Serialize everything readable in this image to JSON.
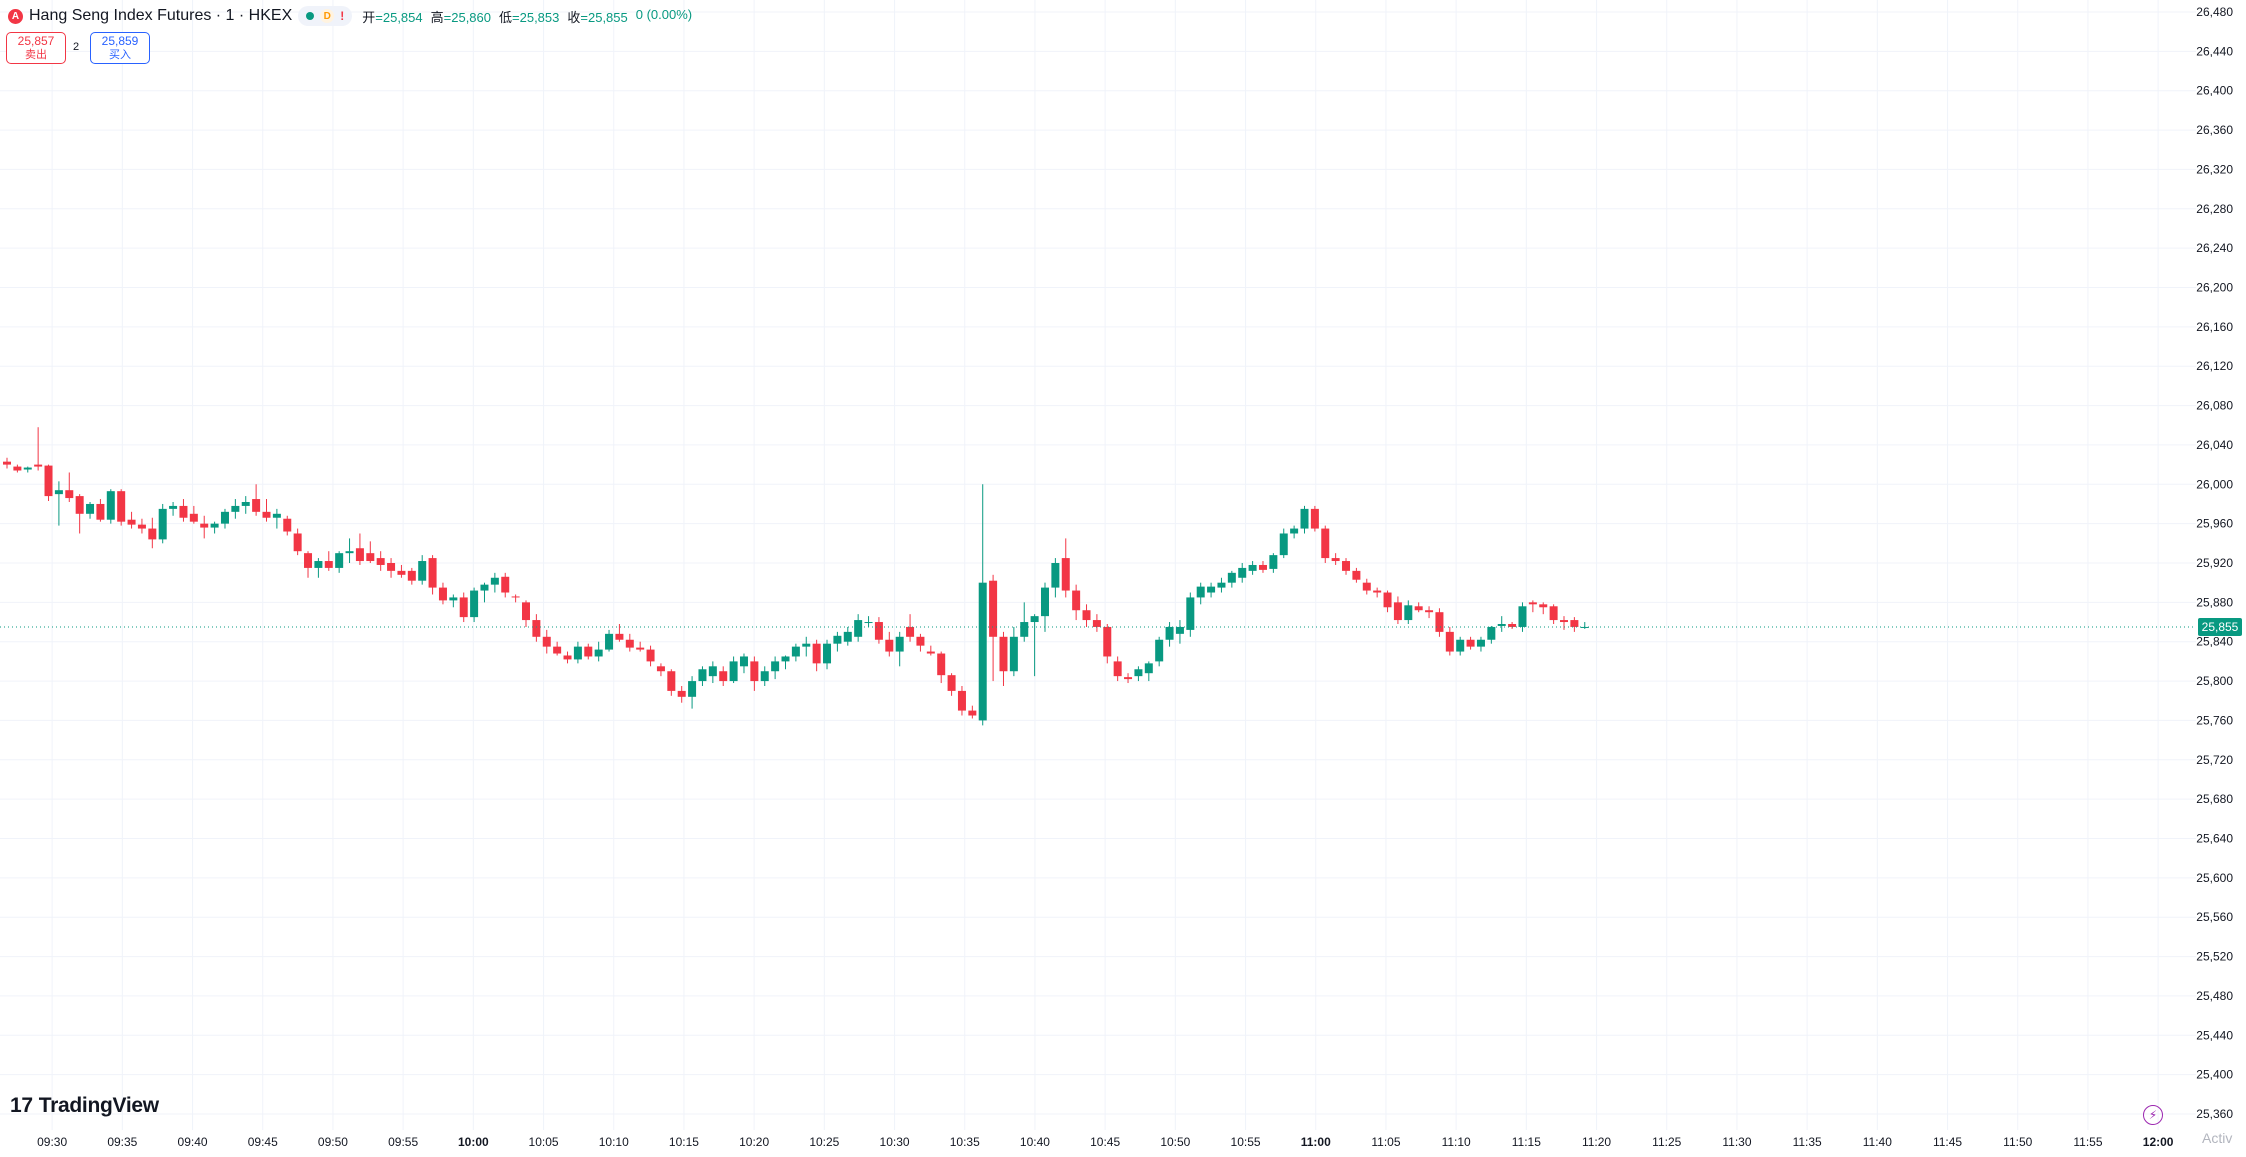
{
  "symbol": {
    "badge": "A",
    "title": "Hang Seng Index Futures · 1 · HKEX"
  },
  "status": {
    "d_label": "D",
    "warn_label": "!"
  },
  "ohlc": {
    "open_label": "开",
    "open": "=25,854",
    "high_label": "高",
    "high": "=25,860",
    "low_label": "低",
    "low": "=25,853",
    "close_label": "收",
    "close": "=25,855",
    "change": "0 (0.00%)"
  },
  "trade": {
    "sell_price": "25,857",
    "sell_label": "卖出",
    "spread": "2",
    "buy_price": "25,859",
    "buy_label": "买入"
  },
  "branding": {
    "logo_mark": "17",
    "logo_text": "TradingView",
    "watermark": "Activ"
  },
  "colors": {
    "up": "#089981",
    "down": "#f23645",
    "grid": "#f0f3fa",
    "text": "#131722"
  },
  "chart_data": {
    "type": "candlestick",
    "symbol": "Hang Seng Index Futures",
    "interval": "1",
    "exchange": "HKEX",
    "ylim": [
      25340,
      26500
    ],
    "y_ticks": [
      25360,
      25400,
      25440,
      25480,
      25520,
      25560,
      25600,
      25640,
      25680,
      25720,
      25760,
      25800,
      25840,
      25880,
      25920,
      25960,
      26000,
      26040,
      26080,
      26120,
      26160,
      26200,
      26240,
      26280,
      26320,
      26360,
      26400,
      26440,
      26480
    ],
    "y_tick_labels": [
      "25,360",
      "25,400",
      "25,440",
      "25,480",
      "25,520",
      "25,560",
      "25,600",
      "25,640",
      "25,680",
      "25,720",
      "25,760",
      "25,800",
      "25,840",
      "25,880",
      "25,920",
      "25,960",
      "26,000",
      "26,040",
      "26,080",
      "26,120",
      "26,160",
      "26,200",
      "26,240",
      "26,280",
      "26,320",
      "26,360",
      "26,400",
      "26,440",
      "26,480"
    ],
    "x_ticks": [
      "09:30",
      "09:35",
      "09:40",
      "09:45",
      "09:50",
      "09:55",
      "10:00",
      "10:05",
      "10:10",
      "10:15",
      "10:20",
      "10:25",
      "10:30",
      "10:35",
      "10:40",
      "10:45",
      "10:50",
      "10:55",
      "11:00",
      "11:05",
      "11:10",
      "11:15",
      "11:20",
      "11:25",
      "11:30",
      "11:35",
      "11:40",
      "11:45",
      "11:50",
      "11:55",
      "12:00"
    ],
    "bold_x_ticks": [
      "10:00",
      "11:00",
      "12:00"
    ],
    "last_price": 25855,
    "last_price_label": "25,855",
    "candles": [
      {
        "o": 26023,
        "h": 26027,
        "l": 26016,
        "c": 26020
      },
      {
        "o": 26018,
        "h": 26020,
        "l": 26012,
        "c": 26014
      },
      {
        "o": 26015,
        "h": 26018,
        "l": 26012,
        "c": 26017
      },
      {
        "o": 26020,
        "h": 26058,
        "l": 26014,
        "c": 26018
      },
      {
        "o": 26019,
        "h": 26020,
        "l": 25983,
        "c": 25988
      },
      {
        "o": 25990,
        "h": 26003,
        "l": 25958,
        "c": 25994
      },
      {
        "o": 25994,
        "h": 26012,
        "l": 25982,
        "c": 25986
      },
      {
        "o": 25988,
        "h": 25990,
        "l": 25950,
        "c": 25970
      },
      {
        "o": 25970,
        "h": 25982,
        "l": 25965,
        "c": 25980
      },
      {
        "o": 25980,
        "h": 25985,
        "l": 25962,
        "c": 25964
      },
      {
        "o": 25964,
        "h": 25995,
        "l": 25960,
        "c": 25993
      },
      {
        "o": 25993,
        "h": 25995,
        "l": 25958,
        "c": 25962
      },
      {
        "o": 25964,
        "h": 25972,
        "l": 25955,
        "c": 25959
      },
      {
        "o": 25959,
        "h": 25965,
        "l": 25950,
        "c": 25955
      },
      {
        "o": 25955,
        "h": 25966,
        "l": 25935,
        "c": 25944
      },
      {
        "o": 25944,
        "h": 25980,
        "l": 25940,
        "c": 25975
      },
      {
        "o": 25975,
        "h": 25982,
        "l": 25968,
        "c": 25978
      },
      {
        "o": 25978,
        "h": 25985,
        "l": 25962,
        "c": 25966
      },
      {
        "o": 25970,
        "h": 25978,
        "l": 25960,
        "c": 25962
      },
      {
        "o": 25960,
        "h": 25968,
        "l": 25945,
        "c": 25956
      },
      {
        "o": 25956,
        "h": 25962,
        "l": 25950,
        "c": 25960
      },
      {
        "o": 25960,
        "h": 25975,
        "l": 25955,
        "c": 25972
      },
      {
        "o": 25972,
        "h": 25985,
        "l": 25965,
        "c": 25978
      },
      {
        "o": 25978,
        "h": 25988,
        "l": 25970,
        "c": 25982
      },
      {
        "o": 25985,
        "h": 26000,
        "l": 25968,
        "c": 25972
      },
      {
        "o": 25972,
        "h": 25985,
        "l": 25962,
        "c": 25966
      },
      {
        "o": 25966,
        "h": 25975,
        "l": 25955,
        "c": 25970
      },
      {
        "o": 25965,
        "h": 25968,
        "l": 25948,
        "c": 25952
      },
      {
        "o": 25950,
        "h": 25955,
        "l": 25928,
        "c": 25932
      },
      {
        "o": 25930,
        "h": 25932,
        "l": 25905,
        "c": 25915
      },
      {
        "o": 25915,
        "h": 25925,
        "l": 25905,
        "c": 25922
      },
      {
        "o": 25922,
        "h": 25932,
        "l": 25912,
        "c": 25915
      },
      {
        "o": 25915,
        "h": 25932,
        "l": 25910,
        "c": 25930
      },
      {
        "o": 25930,
        "h": 25945,
        "l": 25920,
        "c": 25932
      },
      {
        "o": 25935,
        "h": 25950,
        "l": 25918,
        "c": 25922
      },
      {
        "o": 25930,
        "h": 25942,
        "l": 25920,
        "c": 25922
      },
      {
        "o": 25925,
        "h": 25932,
        "l": 25912,
        "c": 25918
      },
      {
        "o": 25920,
        "h": 25925,
        "l": 25905,
        "c": 25912
      },
      {
        "o": 25912,
        "h": 25918,
        "l": 25905,
        "c": 25908
      },
      {
        "o": 25912,
        "h": 25915,
        "l": 25898,
        "c": 25902
      },
      {
        "o": 25902,
        "h": 25928,
        "l": 25898,
        "c": 25922
      },
      {
        "o": 25925,
        "h": 25928,
        "l": 25888,
        "c": 25895
      },
      {
        "o": 25895,
        "h": 25900,
        "l": 25878,
        "c": 25882
      },
      {
        "o": 25882,
        "h": 25888,
        "l": 25875,
        "c": 25885
      },
      {
        "o": 25885,
        "h": 25890,
        "l": 25860,
        "c": 25865
      },
      {
        "o": 25865,
        "h": 25895,
        "l": 25860,
        "c": 25892
      },
      {
        "o": 25892,
        "h": 25900,
        "l": 25880,
        "c": 25898
      },
      {
        "o": 25898,
        "h": 25910,
        "l": 25890,
        "c": 25905
      },
      {
        "o": 25906,
        "h": 25910,
        "l": 25885,
        "c": 25890
      },
      {
        "o": 25886,
        "h": 25888,
        "l": 25880,
        "c": 25885
      },
      {
        "o": 25880,
        "h": 25882,
        "l": 25855,
        "c": 25862
      },
      {
        "o": 25862,
        "h": 25868,
        "l": 25840,
        "c": 25845
      },
      {
        "o": 25845,
        "h": 25852,
        "l": 25828,
        "c": 25835
      },
      {
        "o": 25835,
        "h": 25840,
        "l": 25826,
        "c": 25828
      },
      {
        "o": 25826,
        "h": 25830,
        "l": 25818,
        "c": 25822
      },
      {
        "o": 25822,
        "h": 25840,
        "l": 25818,
        "c": 25835
      },
      {
        "o": 25835,
        "h": 25838,
        "l": 25822,
        "c": 25825
      },
      {
        "o": 25825,
        "h": 25840,
        "l": 25820,
        "c": 25832
      },
      {
        "o": 25832,
        "h": 25852,
        "l": 25830,
        "c": 25848
      },
      {
        "o": 25848,
        "h": 25858,
        "l": 25840,
        "c": 25842
      },
      {
        "o": 25842,
        "h": 25848,
        "l": 25830,
        "c": 25834
      },
      {
        "o": 25834,
        "h": 25840,
        "l": 25830,
        "c": 25832
      },
      {
        "o": 25832,
        "h": 25836,
        "l": 25815,
        "c": 25820
      },
      {
        "o": 25815,
        "h": 25818,
        "l": 25805,
        "c": 25810
      },
      {
        "o": 25810,
        "h": 25812,
        "l": 25785,
        "c": 25790
      },
      {
        "o": 25790,
        "h": 25795,
        "l": 25778,
        "c": 25784
      },
      {
        "o": 25784,
        "h": 25805,
        "l": 25772,
        "c": 25800
      },
      {
        "o": 25800,
        "h": 25815,
        "l": 25795,
        "c": 25812
      },
      {
        "o": 25805,
        "h": 25820,
        "l": 25798,
        "c": 25815
      },
      {
        "o": 25810,
        "h": 25815,
        "l": 25795,
        "c": 25800
      },
      {
        "o": 25800,
        "h": 25825,
        "l": 25798,
        "c": 25820
      },
      {
        "o": 25815,
        "h": 25828,
        "l": 25808,
        "c": 25825
      },
      {
        "o": 25820,
        "h": 25825,
        "l": 25790,
        "c": 25800
      },
      {
        "o": 25800,
        "h": 25815,
        "l": 25795,
        "c": 25810
      },
      {
        "o": 25810,
        "h": 25825,
        "l": 25802,
        "c": 25820
      },
      {
        "o": 25820,
        "h": 25826,
        "l": 25812,
        "c": 25825
      },
      {
        "o": 25825,
        "h": 25838,
        "l": 25820,
        "c": 25835
      },
      {
        "o": 25835,
        "h": 25845,
        "l": 25825,
        "c": 25838
      },
      {
        "o": 25838,
        "h": 25842,
        "l": 25810,
        "c": 25818
      },
      {
        "o": 25818,
        "h": 25842,
        "l": 25812,
        "c": 25838
      },
      {
        "o": 25838,
        "h": 25850,
        "l": 25830,
        "c": 25846
      },
      {
        "o": 25840,
        "h": 25855,
        "l": 25836,
        "c": 25850
      },
      {
        "o": 25845,
        "h": 25868,
        "l": 25840,
        "c": 25862
      },
      {
        "o": 25860,
        "h": 25866,
        "l": 25855,
        "c": 25860
      },
      {
        "o": 25860,
        "h": 25865,
        "l": 25838,
        "c": 25842
      },
      {
        "o": 25842,
        "h": 25850,
        "l": 25825,
        "c": 25830
      },
      {
        "o": 25830,
        "h": 25850,
        "l": 25815,
        "c": 25845
      },
      {
        "o": 25855,
        "h": 25868,
        "l": 25840,
        "c": 25845
      },
      {
        "o": 25845,
        "h": 25848,
        "l": 25830,
        "c": 25836
      },
      {
        "o": 25830,
        "h": 25836,
        "l": 25826,
        "c": 25828
      },
      {
        "o": 25828,
        "h": 25830,
        "l": 25798,
        "c": 25806
      },
      {
        "o": 25806,
        "h": 25808,
        "l": 25785,
        "c": 25790
      },
      {
        "o": 25790,
        "h": 25795,
        "l": 25765,
        "c": 25770
      },
      {
        "o": 25770,
        "h": 25775,
        "l": 25762,
        "c": 25765
      },
      {
        "o": 25760,
        "h": 26000,
        "l": 25755,
        "c": 25900
      },
      {
        "o": 25902,
        "h": 25908,
        "l": 25800,
        "c": 25845
      },
      {
        "o": 25845,
        "h": 25850,
        "l": 25795,
        "c": 25810
      },
      {
        "o": 25810,
        "h": 25855,
        "l": 25805,
        "c": 25845
      },
      {
        "o": 25845,
        "h": 25880,
        "l": 25840,
        "c": 25860
      },
      {
        "o": 25860,
        "h": 25868,
        "l": 25805,
        "c": 25866
      },
      {
        "o": 25866,
        "h": 25900,
        "l": 25850,
        "c": 25895
      },
      {
        "o": 25895,
        "h": 25925,
        "l": 25885,
        "c": 25920
      },
      {
        "o": 25925,
        "h": 25945,
        "l": 25885,
        "c": 25892
      },
      {
        "o": 25892,
        "h": 25898,
        "l": 25862,
        "c": 25872
      },
      {
        "o": 25872,
        "h": 25878,
        "l": 25855,
        "c": 25862
      },
      {
        "o": 25862,
        "h": 25868,
        "l": 25850,
        "c": 25855
      },
      {
        "o": 25855,
        "h": 25858,
        "l": 25818,
        "c": 25825
      },
      {
        "o": 25820,
        "h": 25825,
        "l": 25800,
        "c": 25805
      },
      {
        "o": 25804,
        "h": 25808,
        "l": 25798,
        "c": 25802
      },
      {
        "o": 25805,
        "h": 25815,
        "l": 25800,
        "c": 25812
      },
      {
        "o": 25808,
        "h": 25820,
        "l": 25800,
        "c": 25818
      },
      {
        "o": 25820,
        "h": 25845,
        "l": 25815,
        "c": 25842
      },
      {
        "o": 25842,
        "h": 25860,
        "l": 25835,
        "c": 25855
      },
      {
        "o": 25848,
        "h": 25862,
        "l": 25838,
        "c": 25855
      },
      {
        "o": 25852,
        "h": 25890,
        "l": 25845,
        "c": 25885
      },
      {
        "o": 25885,
        "h": 25900,
        "l": 25878,
        "c": 25896
      },
      {
        "o": 25890,
        "h": 25900,
        "l": 25885,
        "c": 25896
      },
      {
        "o": 25895,
        "h": 25905,
        "l": 25890,
        "c": 25900
      },
      {
        "o": 25900,
        "h": 25912,
        "l": 25895,
        "c": 25910
      },
      {
        "o": 25905,
        "h": 25920,
        "l": 25900,
        "c": 25915
      },
      {
        "o": 25912,
        "h": 25922,
        "l": 25908,
        "c": 25918
      },
      {
        "o": 25918,
        "h": 25922,
        "l": 25910,
        "c": 25913
      },
      {
        "o": 25914,
        "h": 25930,
        "l": 25910,
        "c": 25928
      },
      {
        "o": 25928,
        "h": 25955,
        "l": 25925,
        "c": 25950
      },
      {
        "o": 25950,
        "h": 25958,
        "l": 25945,
        "c": 25955
      },
      {
        "o": 25955,
        "h": 25978,
        "l": 25950,
        "c": 25975
      },
      {
        "o": 25975,
        "h": 25978,
        "l": 25952,
        "c": 25955
      },
      {
        "o": 25955,
        "h": 25958,
        "l": 25920,
        "c": 25925
      },
      {
        "o": 25925,
        "h": 25930,
        "l": 25918,
        "c": 25922
      },
      {
        "o": 25922,
        "h": 25925,
        "l": 25908,
        "c": 25912
      },
      {
        "o": 25912,
        "h": 25915,
        "l": 25900,
        "c": 25903
      },
      {
        "o": 25900,
        "h": 25904,
        "l": 25888,
        "c": 25892
      },
      {
        "o": 25892,
        "h": 25895,
        "l": 25885,
        "c": 25890
      },
      {
        "o": 25890,
        "h": 25892,
        "l": 25870,
        "c": 25875
      },
      {
        "o": 25880,
        "h": 25886,
        "l": 25858,
        "c": 25862
      },
      {
        "o": 25862,
        "h": 25882,
        "l": 25858,
        "c": 25877
      },
      {
        "o": 25876,
        "h": 25880,
        "l": 25870,
        "c": 25872
      },
      {
        "o": 25872,
        "h": 25876,
        "l": 25864,
        "c": 25870
      },
      {
        "o": 25870,
        "h": 25874,
        "l": 25845,
        "c": 25850
      },
      {
        "o": 25850,
        "h": 25855,
        "l": 25826,
        "c": 25830
      },
      {
        "o": 25830,
        "h": 25845,
        "l": 25826,
        "c": 25842
      },
      {
        "o": 25842,
        "h": 25845,
        "l": 25832,
        "c": 25835
      },
      {
        "o": 25835,
        "h": 25845,
        "l": 25830,
        "c": 25842
      },
      {
        "o": 25842,
        "h": 25856,
        "l": 25838,
        "c": 25855
      },
      {
        "o": 25856,
        "h": 25866,
        "l": 25850,
        "c": 25858
      },
      {
        "o": 25858,
        "h": 25860,
        "l": 25853,
        "c": 25855
      },
      {
        "o": 25855,
        "h": 25880,
        "l": 25850,
        "c": 25876
      },
      {
        "o": 25880,
        "h": 25882,
        "l": 25870,
        "c": 25878
      },
      {
        "o": 25878,
        "h": 25880,
        "l": 25868,
        "c": 25875
      },
      {
        "o": 25876,
        "h": 25878,
        "l": 25858,
        "c": 25862
      },
      {
        "o": 25862,
        "h": 25866,
        "l": 25852,
        "c": 25860
      },
      {
        "o": 25862,
        "h": 25865,
        "l": 25850,
        "c": 25855
      },
      {
        "o": 25854,
        "h": 25860,
        "l": 25853,
        "c": 25855
      }
    ]
  }
}
